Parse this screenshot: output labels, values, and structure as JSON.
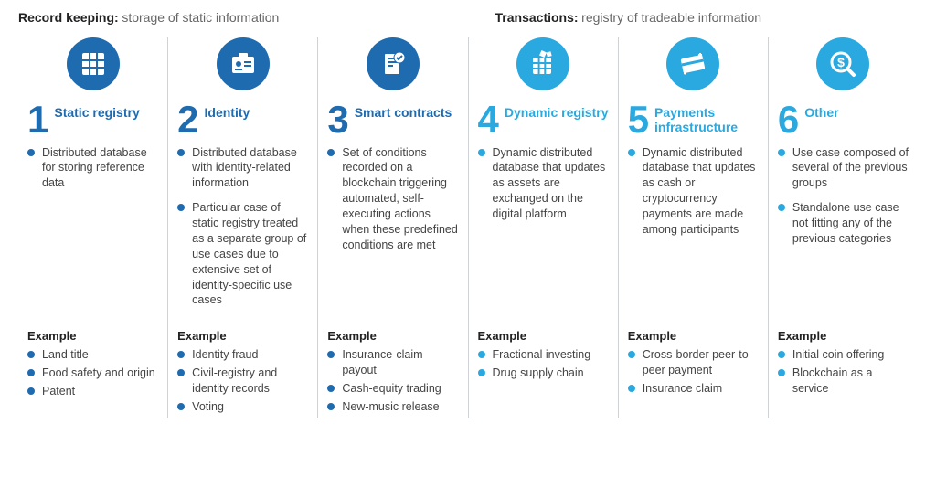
{
  "sections": {
    "left": {
      "label": "Record keeping:",
      "desc": "storage of static information"
    },
    "right": {
      "label": "Transactions:",
      "desc": "registry of tradeable information"
    }
  },
  "colors": {
    "dark_blue": "#1f6bb0",
    "light_blue": "#29a9e0",
    "text_title_dark": "#1f6bb0",
    "text_title_light": "#29a9e0",
    "bullet_dark": "#1f6bb0",
    "bullet_light": "#29a9e0"
  },
  "columns": [
    {
      "number": "1",
      "title": "Static registry",
      "palette": "dark",
      "icon": "grid",
      "descriptions": [
        "Distributed database for storing reference data"
      ],
      "example_label": "Example",
      "examples": [
        "Land title",
        "Food safety and origin",
        "Patent"
      ]
    },
    {
      "number": "2",
      "title": "Identity",
      "palette": "dark",
      "icon": "id-card",
      "descriptions": [
        "Distributed database with identity-related information",
        "Particular case of static registry treated as a separate group of use cases due to extensive set of identity-specific use cases"
      ],
      "example_label": "Example",
      "examples": [
        "Identity fraud",
        "Civil-registry and identity records",
        "Voting"
      ]
    },
    {
      "number": "3",
      "title": "Smart contracts",
      "palette": "dark",
      "icon": "contract",
      "descriptions": [
        "Set of conditions recorded on a blockchain triggering automated, self-executing actions when these predefined conditions are met"
      ],
      "example_label": "Example",
      "examples": [
        "Insurance-claim payout",
        "Cash-equity trading",
        "New-music release"
      ]
    },
    {
      "number": "4",
      "title": "Dynamic registry",
      "palette": "light",
      "icon": "dynamic-grid",
      "descriptions": [
        "Dynamic distributed database that updates as assets are exchanged on the digital platform"
      ],
      "example_label": "Example",
      "examples": [
        "Fractional investing",
        "Drug supply chain"
      ]
    },
    {
      "number": "5",
      "title": "Payments infrastructure",
      "palette": "light",
      "icon": "card",
      "descriptions": [
        "Dynamic distributed database that updates as cash or cryptocurrency payments are made among participants"
      ],
      "example_label": "Example",
      "examples": [
        "Cross-border peer-to-peer payment",
        "Insurance claim"
      ]
    },
    {
      "number": "6",
      "title": "Other",
      "palette": "light",
      "icon": "dollar-search",
      "descriptions": [
        "Use case composed of several of the previous groups",
        "Standalone use case not fitting any of the previous categories"
      ],
      "example_label": "Example",
      "examples": [
        "Initial coin offering",
        "Blockchain as a service"
      ]
    }
  ]
}
